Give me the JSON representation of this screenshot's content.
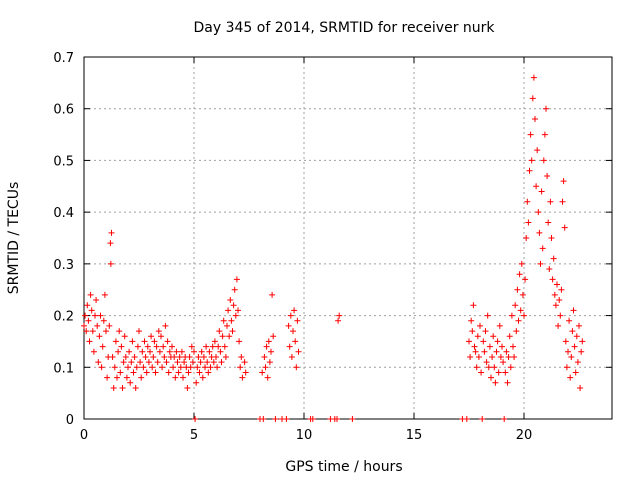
{
  "chart_data": {
    "type": "scatter",
    "title": "Day 345 of 2014, SRMTID for receiver nurk",
    "xlabel": "GPS time / hours",
    "ylabel": "SRMTID / TECUs",
    "xlim": [
      0,
      24
    ],
    "ylim": [
      0,
      0.7
    ],
    "x_ticks": [
      0,
      5,
      10,
      15,
      20
    ],
    "x_tick_labels": [
      "0",
      "5",
      "10",
      "15",
      "20"
    ],
    "y_ticks": [
      0,
      0.1,
      0.2,
      0.3,
      0.4,
      0.5,
      0.6,
      0.7
    ],
    "y_tick_labels": [
      "0",
      "0.1",
      "0.2",
      "0.3",
      "0.4",
      "0.5",
      "0.6",
      "0.7"
    ],
    "grid": true,
    "marker": "+",
    "color": "#ff0000",
    "series": [
      {
        "name": "SRMTID",
        "points": [
          [
            0.0,
            0.18
          ],
          [
            0.05,
            0.2
          ],
          [
            0.1,
            0.17
          ],
          [
            0.15,
            0.22
          ],
          [
            0.2,
            0.19
          ],
          [
            0.25,
            0.15
          ],
          [
            0.3,
            0.24
          ],
          [
            0.35,
            0.21
          ],
          [
            0.4,
            0.17
          ],
          [
            0.45,
            0.13
          ],
          [
            0.5,
            0.2
          ],
          [
            0.55,
            0.23
          ],
          [
            0.6,
            0.18
          ],
          [
            0.65,
            0.11
          ],
          [
            0.7,
            0.16
          ],
          [
            0.75,
            0.2
          ],
          [
            0.8,
            0.1
          ],
          [
            0.85,
            0.14
          ],
          [
            0.9,
            0.19
          ],
          [
            0.95,
            0.24
          ],
          [
            1.0,
            0.17
          ],
          [
            1.05,
            0.08
          ],
          [
            1.1,
            0.12
          ],
          [
            1.15,
            0.18
          ],
          [
            1.2,
            0.34
          ],
          [
            1.22,
            0.3
          ],
          [
            1.25,
            0.36
          ],
          [
            1.3,
            0.12
          ],
          [
            1.35,
            0.06
          ],
          [
            1.4,
            0.1
          ],
          [
            1.45,
            0.15
          ],
          [
            1.5,
            0.08
          ],
          [
            1.55,
            0.13
          ],
          [
            1.6,
            0.17
          ],
          [
            1.65,
            0.09
          ],
          [
            1.7,
            0.14
          ],
          [
            1.75,
            0.06
          ],
          [
            1.8,
            0.11
          ],
          [
            1.85,
            0.16
          ],
          [
            1.9,
            0.12
          ],
          [
            1.95,
            0.08
          ],
          [
            2.0,
            0.1
          ],
          [
            2.05,
            0.13
          ],
          [
            2.1,
            0.07
          ],
          [
            2.15,
            0.11
          ],
          [
            2.2,
            0.15
          ],
          [
            2.25,
            0.09
          ],
          [
            2.3,
            0.12
          ],
          [
            2.35,
            0.06
          ],
          [
            2.4,
            0.1
          ],
          [
            2.45,
            0.14
          ],
          [
            2.5,
            0.17
          ],
          [
            2.55,
            0.11
          ],
          [
            2.6,
            0.08
          ],
          [
            2.65,
            0.13
          ],
          [
            2.7,
            0.1
          ],
          [
            2.75,
            0.15
          ],
          [
            2.8,
            0.12
          ],
          [
            2.85,
            0.09
          ],
          [
            2.9,
            0.14
          ],
          [
            2.95,
            0.11
          ],
          [
            3.0,
            0.13
          ],
          [
            3.05,
            0.16
          ],
          [
            3.1,
            0.1
          ],
          [
            3.15,
            0.12
          ],
          [
            3.2,
            0.15
          ],
          [
            3.25,
            0.09
          ],
          [
            3.3,
            0.14
          ],
          [
            3.35,
            0.11
          ],
          [
            3.4,
            0.17
          ],
          [
            3.45,
            0.13
          ],
          [
            3.5,
            0.16
          ],
          [
            3.55,
            0.1
          ],
          [
            3.6,
            0.14
          ],
          [
            3.65,
            0.12
          ],
          [
            3.7,
            0.18
          ],
          [
            3.75,
            0.11
          ],
          [
            3.8,
            0.15
          ],
          [
            3.85,
            0.09
          ],
          [
            3.9,
            0.13
          ],
          [
            3.95,
            0.12
          ],
          [
            4.0,
            0.14
          ],
          [
            4.05,
            0.1
          ],
          [
            4.1,
            0.12
          ],
          [
            4.15,
            0.08
          ],
          [
            4.2,
            0.13
          ],
          [
            4.25,
            0.11
          ],
          [
            4.3,
            0.09
          ],
          [
            4.35,
            0.12
          ],
          [
            4.4,
            0.1
          ],
          [
            4.45,
            0.13
          ],
          [
            4.5,
            0.08
          ],
          [
            4.55,
            0.11
          ],
          [
            4.6,
            0.12
          ],
          [
            4.65,
            0.1
          ],
          [
            4.7,
            0.06
          ],
          [
            4.75,
            0.09
          ],
          [
            4.8,
            0.12
          ],
          [
            4.85,
            0.1
          ],
          [
            4.9,
            0.14
          ],
          [
            4.95,
            0.11
          ],
          [
            5.0,
            0.13
          ],
          [
            5.05,
            0.0
          ],
          [
            5.1,
            0.07
          ],
          [
            5.15,
            0.1
          ],
          [
            5.2,
            0.12
          ],
          [
            5.25,
            0.09
          ],
          [
            5.3,
            0.11
          ],
          [
            5.35,
            0.13
          ],
          [
            5.4,
            0.08
          ],
          [
            5.45,
            0.12
          ],
          [
            5.5,
            0.1
          ],
          [
            5.55,
            0.14
          ],
          [
            5.6,
            0.11
          ],
          [
            5.65,
            0.09
          ],
          [
            5.7,
            0.13
          ],
          [
            5.75,
            0.1
          ],
          [
            5.8,
            0.12
          ],
          [
            5.85,
            0.14
          ],
          [
            5.9,
            0.11
          ],
          [
            5.95,
            0.15
          ],
          [
            6.0,
            0.12
          ],
          [
            6.05,
            0.1
          ],
          [
            6.1,
            0.14
          ],
          [
            6.15,
            0.17
          ],
          [
            6.2,
            0.13
          ],
          [
            6.25,
            0.11
          ],
          [
            6.3,
            0.16
          ],
          [
            6.35,
            0.19
          ],
          [
            6.4,
            0.14
          ],
          [
            6.45,
            0.12
          ],
          [
            6.5,
            0.18
          ],
          [
            6.55,
            0.21
          ],
          [
            6.6,
            0.16
          ],
          [
            6.65,
            0.23
          ],
          [
            6.7,
            0.19
          ],
          [
            6.75,
            0.17
          ],
          [
            6.8,
            0.22
          ],
          [
            6.85,
            0.25
          ],
          [
            6.9,
            0.2
          ],
          [
            6.95,
            0.27
          ],
          [
            7.0,
            0.21
          ],
          [
            7.05,
            0.15
          ],
          [
            7.1,
            0.1
          ],
          [
            7.15,
            0.12
          ],
          [
            7.2,
            0.08
          ],
          [
            7.3,
            0.11
          ],
          [
            7.35,
            0.09
          ],
          [
            8.0,
            0.0
          ],
          [
            8.1,
            0.09
          ],
          [
            8.15,
            0.0
          ],
          [
            8.2,
            0.12
          ],
          [
            8.25,
            0.1
          ],
          [
            8.3,
            0.14
          ],
          [
            8.35,
            0.08
          ],
          [
            8.4,
            0.15
          ],
          [
            8.45,
            0.11
          ],
          [
            8.5,
            0.13
          ],
          [
            8.55,
            0.24
          ],
          [
            8.6,
            0.16
          ],
          [
            8.7,
            0.0
          ],
          [
            9.0,
            0.0
          ],
          [
            9.2,
            0.0
          ],
          [
            9.3,
            0.18
          ],
          [
            9.35,
            0.14
          ],
          [
            9.4,
            0.2
          ],
          [
            9.45,
            0.12
          ],
          [
            9.5,
            0.17
          ],
          [
            9.55,
            0.21
          ],
          [
            9.6,
            0.15
          ],
          [
            9.65,
            0.1
          ],
          [
            9.7,
            0.19
          ],
          [
            9.75,
            0.13
          ],
          [
            10.3,
            0.0
          ],
          [
            10.4,
            0.0
          ],
          [
            11.2,
            0.0
          ],
          [
            11.4,
            0.0
          ],
          [
            11.5,
            0.0
          ],
          [
            11.55,
            0.19
          ],
          [
            11.6,
            0.2
          ],
          [
            12.2,
            0.0
          ],
          [
            17.2,
            0.0
          ],
          [
            17.4,
            0.0
          ],
          [
            17.5,
            0.15
          ],
          [
            17.55,
            0.12
          ],
          [
            17.6,
            0.19
          ],
          [
            17.65,
            0.17
          ],
          [
            17.7,
            0.22
          ],
          [
            17.75,
            0.14
          ],
          [
            17.8,
            0.13
          ],
          [
            17.85,
            0.1
          ],
          [
            17.9,
            0.16
          ],
          [
            17.95,
            0.12
          ],
          [
            18.0,
            0.18
          ],
          [
            18.05,
            0.09
          ],
          [
            18.1,
            0.0
          ],
          [
            18.15,
            0.15
          ],
          [
            18.2,
            0.13
          ],
          [
            18.25,
            0.17
          ],
          [
            18.3,
            0.11
          ],
          [
            18.35,
            0.2
          ],
          [
            18.4,
            0.1
          ],
          [
            18.45,
            0.14
          ],
          [
            18.5,
            0.08
          ],
          [
            18.55,
            0.12
          ],
          [
            18.6,
            0.16
          ],
          [
            18.65,
            0.1
          ],
          [
            18.7,
            0.07
          ],
          [
            18.75,
            0.13
          ],
          [
            18.8,
            0.15
          ],
          [
            18.85,
            0.09
          ],
          [
            18.9,
            0.18
          ],
          [
            18.95,
            0.12
          ],
          [
            19.0,
            0.14
          ],
          [
            19.05,
            0.11
          ],
          [
            19.1,
            0.0
          ],
          [
            19.15,
            0.09
          ],
          [
            19.2,
            0.13
          ],
          [
            19.25,
            0.07
          ],
          [
            19.3,
            0.12
          ],
          [
            19.35,
            0.16
          ],
          [
            19.4,
            0.1
          ],
          [
            19.45,
            0.2
          ],
          [
            19.5,
            0.14
          ],
          [
            19.55,
            0.12
          ],
          [
            19.6,
            0.22
          ],
          [
            19.65,
            0.17
          ],
          [
            19.7,
            0.25
          ],
          [
            19.75,
            0.19
          ],
          [
            19.8,
            0.28
          ],
          [
            19.85,
            0.21
          ],
          [
            19.9,
            0.3
          ],
          [
            19.95,
            0.24
          ],
          [
            20.0,
            0.2
          ],
          [
            20.05,
            0.27
          ],
          [
            20.1,
            0.35
          ],
          [
            20.15,
            0.42
          ],
          [
            20.2,
            0.38
          ],
          [
            20.25,
            0.48
          ],
          [
            20.3,
            0.55
          ],
          [
            20.35,
            0.5
          ],
          [
            20.4,
            0.62
          ],
          [
            20.45,
            0.66
          ],
          [
            20.5,
            0.58
          ],
          [
            20.55,
            0.45
          ],
          [
            20.6,
            0.52
          ],
          [
            20.65,
            0.4
          ],
          [
            20.7,
            0.36
          ],
          [
            20.75,
            0.3
          ],
          [
            20.8,
            0.44
          ],
          [
            20.85,
            0.33
          ],
          [
            20.9,
            0.5
          ],
          [
            20.95,
            0.55
          ],
          [
            21.0,
            0.6
          ],
          [
            21.05,
            0.47
          ],
          [
            21.1,
            0.38
          ],
          [
            21.15,
            0.29
          ],
          [
            21.2,
            0.42
          ],
          [
            21.25,
            0.35
          ],
          [
            21.3,
            0.27
          ],
          [
            21.35,
            0.31
          ],
          [
            21.4,
            0.24
          ],
          [
            21.45,
            0.22
          ],
          [
            21.5,
            0.26
          ],
          [
            21.55,
            0.18
          ],
          [
            21.6,
            0.23
          ],
          [
            21.65,
            0.2
          ],
          [
            21.7,
            0.25
          ],
          [
            21.75,
            0.42
          ],
          [
            21.8,
            0.46
          ],
          [
            21.85,
            0.37
          ],
          [
            21.9,
            0.15
          ],
          [
            21.95,
            0.1
          ],
          [
            22.0,
            0.13
          ],
          [
            22.05,
            0.19
          ],
          [
            22.1,
            0.08
          ],
          [
            22.15,
            0.12
          ],
          [
            22.2,
            0.17
          ],
          [
            22.25,
            0.21
          ],
          [
            22.3,
            0.14
          ],
          [
            22.35,
            0.09
          ],
          [
            22.4,
            0.16
          ],
          [
            22.45,
            0.11
          ],
          [
            22.5,
            0.18
          ],
          [
            22.55,
            0.06
          ],
          [
            22.6,
            0.13
          ],
          [
            22.65,
            0.15
          ]
        ]
      }
    ]
  }
}
